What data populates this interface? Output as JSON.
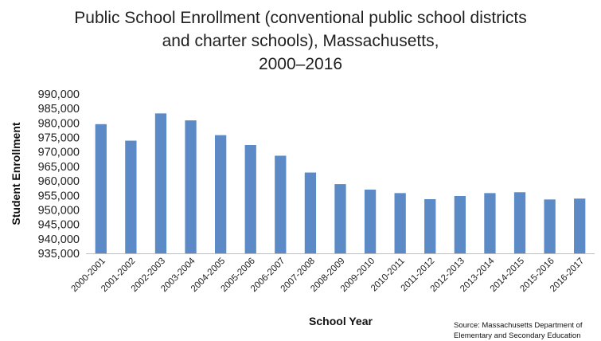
{
  "chart_data": {
    "type": "bar",
    "title_lines": [
      "Public School Enrollment (conventional public school districts",
      "and charter schools), Massachusetts,",
      "2000–2016"
    ],
    "xlabel": "School Year",
    "ylabel": "Student Enrollment",
    "source_lines": [
      "Source: Massachusetts Department of",
      "Elementary and Secondary Education"
    ],
    "ylim": [
      935000,
      990000
    ],
    "yticks": [
      935000,
      940000,
      945000,
      950000,
      955000,
      960000,
      965000,
      970000,
      975000,
      980000,
      985000,
      990000
    ],
    "ytick_labels": [
      "935,000",
      "940,000",
      "945,000",
      "950,000",
      "955,000",
      "960,000",
      "965,000",
      "970,000",
      "975,000",
      "980,000",
      "985,000",
      "990,000"
    ],
    "grid": false,
    "legend": "none",
    "bar_color": "#5b8ac6",
    "categories": [
      "2000-2001",
      "2001-2002",
      "2002-2003",
      "2003-2004",
      "2004-2005",
      "2005-2006",
      "2006-2007",
      "2007-2008",
      "2008-2009",
      "2009-2010",
      "2010-2011",
      "2011-2012",
      "2012-2013",
      "2013-2014",
      "2014-2015",
      "2015-2016",
      "2016-2017"
    ],
    "values": [
      979600,
      973900,
      983300,
      980900,
      975800,
      972400,
      968700,
      962900,
      958900,
      957000,
      955800,
      953700,
      954800,
      955800,
      956100,
      953600,
      953900
    ]
  }
}
